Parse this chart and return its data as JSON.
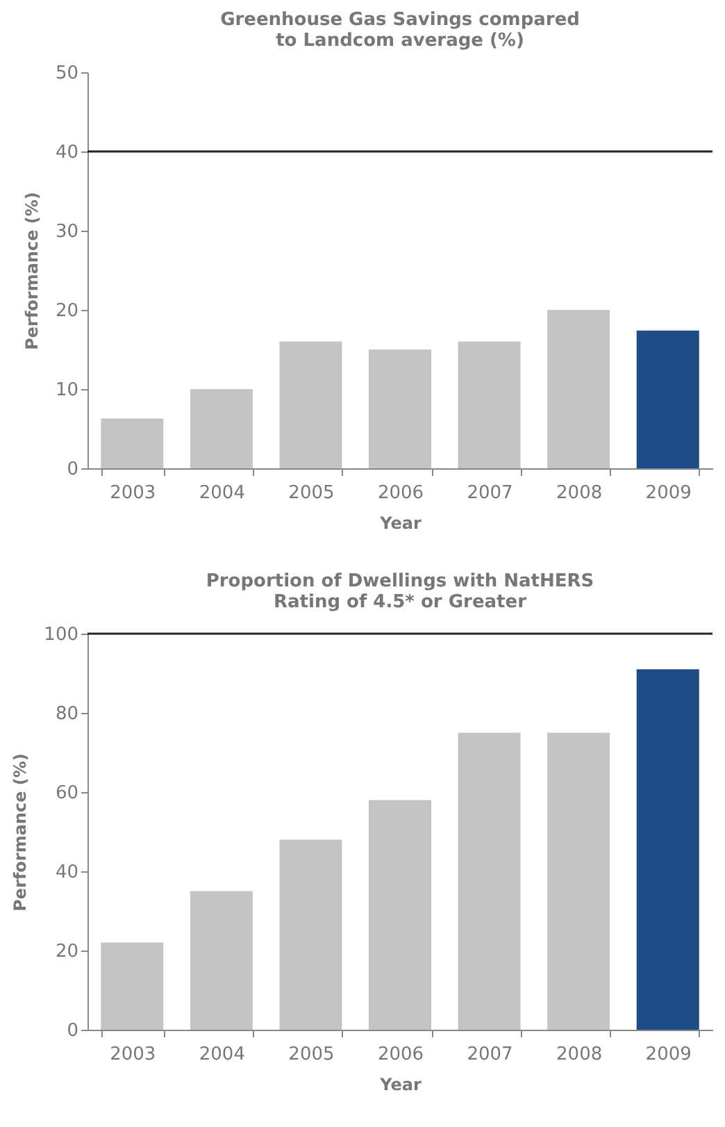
{
  "chart_data": [
    {
      "type": "bar",
      "title": "Greenhouse Gas Savings compared\nto Landcom average (%)",
      "xlabel": "Year",
      "ylabel": "Performance (%)",
      "categories": [
        "2003",
        "2004",
        "2005",
        "2006",
        "2007",
        "2008",
        "2009"
      ],
      "values": [
        6.3,
        10,
        16,
        15,
        16,
        20,
        17.4
      ],
      "colors": [
        "#c4c4c4",
        "#c4c4c4",
        "#c4c4c4",
        "#c4c4c4",
        "#c4c4c4",
        "#c4c4c4",
        "#1d4b85"
      ],
      "ylim": [
        0,
        50
      ],
      "yticks": [
        0,
        10,
        20,
        30,
        40,
        50
      ],
      "ref_lines": [
        {
          "axis": "y",
          "value": 40,
          "color": "#222222"
        }
      ]
    },
    {
      "type": "bar",
      "title": "Proportion of Dwellings with NatHERS\nRating of 4.5* or Greater",
      "xlabel": "Year",
      "ylabel": "Performance (%)",
      "categories": [
        "2003",
        "2004",
        "2005",
        "2006",
        "2007",
        "2008",
        "2009"
      ],
      "values": [
        22,
        35,
        48,
        58,
        75,
        75,
        91
      ],
      "colors": [
        "#c4c4c4",
        "#c4c4c4",
        "#c4c4c4",
        "#c4c4c4",
        "#c4c4c4",
        "#c4c4c4",
        "#1d4b85"
      ],
      "ylim": [
        0,
        100
      ],
      "yticks": [
        0,
        20,
        40,
        60,
        80,
        100
      ],
      "ref_lines": [
        {
          "axis": "y",
          "value": 100,
          "color": "#222222"
        }
      ]
    }
  ]
}
